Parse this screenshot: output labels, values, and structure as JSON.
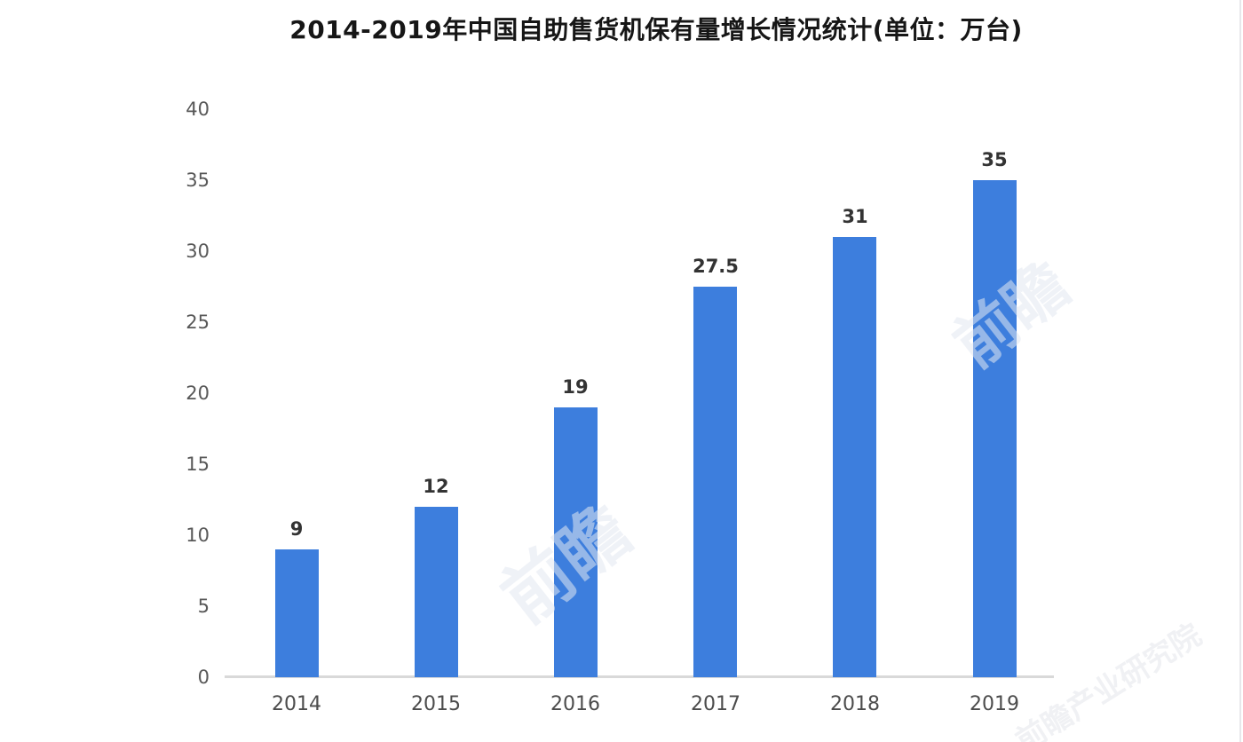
{
  "page": {
    "background": "#ffffff",
    "watermark_text": "前瞻",
    "watermark_corner_text": "前瞻产业研究院"
  },
  "chart_data": {
    "type": "bar",
    "title": "2014-2019年中国自助售货机保有量增长情况统计(单位：万台)",
    "unit": "万台",
    "categories": [
      "2014",
      "2015",
      "2016",
      "2017",
      "2018",
      "2019"
    ],
    "values": [
      9,
      12,
      19,
      27.5,
      31,
      35
    ],
    "value_labels": [
      "9",
      "12",
      "19",
      "27.5",
      "31",
      "35"
    ],
    "xlabel": "",
    "ylabel": "",
    "ylim": [
      0,
      40
    ],
    "yticks": [
      0,
      5,
      10,
      15,
      20,
      25,
      30,
      35,
      40
    ],
    "grid": false,
    "legend": "none",
    "bar_color": "#3d7edd",
    "axis_line_color": "#d9d9d9",
    "tick_label_color": "#575757",
    "value_label_color": "#333333"
  }
}
